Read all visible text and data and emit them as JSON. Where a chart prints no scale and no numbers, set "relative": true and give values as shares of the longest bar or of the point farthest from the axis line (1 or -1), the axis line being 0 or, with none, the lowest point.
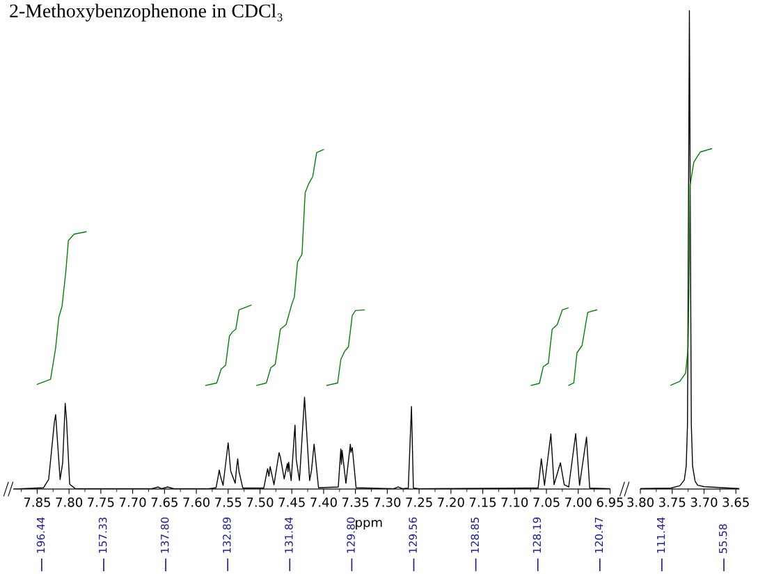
{
  "chart_data": [
    {
      "type": "line",
      "title": "2-Methoxybenzophenone in CDCl₃",
      "xlabel": "ppm",
      "relative": true,
      "grid": false,
      "tick_labels": "x",
      "xlim": [
        7.887,
        6.95
      ],
      "xticks": [
        {
          "value": 7.85,
          "label": "7.85"
        },
        {
          "value": 7.8,
          "label": "7.80"
        },
        {
          "value": 7.75,
          "label": "7.75"
        },
        {
          "value": 7.7,
          "label": "7.70"
        },
        {
          "value": 7.65,
          "label": "7.65"
        },
        {
          "value": 7.6,
          "label": "7.60"
        },
        {
          "value": 7.55,
          "label": "7.55"
        },
        {
          "value": 7.5,
          "label": "7.50"
        },
        {
          "value": 7.45,
          "label": "7.45"
        },
        {
          "value": 7.4,
          "label": "7.40"
        },
        {
          "value": 7.35,
          "label": "7.35"
        },
        {
          "value": 7.3,
          "label": "7.30"
        },
        {
          "value": 7.25,
          "label": "7.25"
        },
        {
          "value": 7.2,
          "label": "7.20"
        },
        {
          "value": 7.15,
          "label": "7.15"
        },
        {
          "value": 7.1,
          "label": "7.10"
        },
        {
          "value": 7.05,
          "label": "7.05"
        },
        {
          "value": 7.0,
          "label": "7.00"
        },
        {
          "value": 6.95,
          "label": "6.95"
        }
      ],
      "annotations": [
        "196.44",
        "157.33",
        "137.80",
        "132.89",
        "131.84",
        "129.80",
        "129.56",
        "128.85",
        "128.19",
        "120.47",
        "111.44",
        "55.58"
      ],
      "series": [
        {
          "color": "#000000",
          "x": [
            7.887,
            7.84,
            7.832,
            7.823,
            7.821,
            7.814,
            7.81,
            7.806,
            7.804,
            7.799,
            7.79,
            7.67,
            7.66,
            7.655,
            7.645,
            7.635,
            7.58,
            7.569,
            7.566,
            7.564,
            7.562,
            7.558,
            7.55,
            7.546,
            7.539,
            7.537,
            7.535,
            7.533,
            7.527,
            7.494,
            7.488,
            7.486,
            7.484,
            7.478,
            7.47,
            7.468,
            7.462,
            7.457,
            7.456,
            7.455,
            7.451,
            7.445,
            7.443,
            7.438,
            7.43,
            7.422,
            7.419,
            7.415,
            7.408,
            7.377,
            7.373,
            7.372,
            7.371,
            7.365,
            7.358,
            7.357,
            7.355,
            7.349,
            7.29,
            7.283,
            7.276,
            7.267,
            7.262,
            7.259,
            7.25,
            7.063,
            7.058,
            7.053,
            7.043,
            7.038,
            7.028,
            7.022,
            7.015,
            7.004,
            6.998,
            6.987,
            6.982,
            6.95
          ],
          "values": [
            0,
            0.004,
            0.028,
            0.197,
            0.219,
            0.028,
            0.077,
            0.252,
            0.207,
            0.014,
            0.001,
            0.001,
            0.006,
            0.001,
            0.006,
            0.001,
            0.001,
            0.004,
            0.034,
            0.056,
            0.037,
            0.011,
            0.136,
            0.053,
            0.017,
            0.058,
            0.089,
            0.052,
            0.003,
            0.003,
            0.06,
            0.038,
            0.066,
            0.013,
            0.107,
            0.094,
            0.03,
            0.075,
            0.051,
            0.079,
            0.025,
            0.188,
            0.087,
            0.025,
            0.27,
            0.025,
            0.056,
            0.132,
            0.004,
            0.006,
            0.118,
            0.073,
            0.114,
            0.017,
            0.132,
            0.108,
            0.122,
            0.004,
            0.001,
            0.006,
            0.001,
            0.003,
            0.243,
            0.003,
            0.001,
            0.003,
            0.089,
            0.011,
            0.162,
            0.013,
            0.077,
            0.013,
            0.006,
            0.163,
            0.011,
            0.153,
            0.003,
            0.001
          ]
        },
        {
          "color": "#008000",
          "x": [
            7.85,
            7.829,
            7.821,
            7.816,
            7.811,
            7.805,
            7.801,
            7.792,
            7.773
          ],
          "values": [
            0.308,
            0.323,
            0.415,
            0.506,
            0.537,
            0.64,
            0.731,
            0.75,
            0.757
          ]
        },
        {
          "color": "#008000",
          "x": [
            7.585,
            7.568,
            7.561,
            7.554,
            7.548,
            7.543,
            7.538,
            7.533,
            7.514
          ],
          "values": [
            0.305,
            0.312,
            0.353,
            0.364,
            0.45,
            0.463,
            0.47,
            0.527,
            0.541
          ]
        },
        {
          "color": "#008000",
          "x": [
            7.505,
            7.49,
            7.483,
            7.476,
            7.468,
            7.459,
            7.45,
            7.446,
            7.441,
            7.434,
            7.429,
            7.424,
            7.417,
            7.411,
            7.399
          ],
          "values": [
            0.305,
            0.312,
            0.357,
            0.367,
            0.47,
            0.484,
            0.544,
            0.565,
            0.668,
            0.691,
            0.872,
            0.896,
            0.92,
            0.99,
            1.0
          ]
        },
        {
          "color": "#008000",
          "x": [
            7.395,
            7.378,
            7.373,
            7.367,
            7.361,
            7.355,
            7.35,
            7.336
          ],
          "values": [
            0.305,
            0.312,
            0.381,
            0.405,
            0.419,
            0.511,
            0.525,
            0.527
          ]
        },
        {
          "color": "#008000",
          "x": [
            7.074,
            7.061,
            7.055,
            7.047,
            7.041,
            7.033,
            7.025,
            7.016
          ],
          "values": [
            0.305,
            0.311,
            0.36,
            0.37,
            0.47,
            0.484,
            0.527,
            0.533
          ]
        },
        {
          "color": "#008000",
          "x": [
            7.015,
            7.007,
            7.002,
            6.994,
            6.988,
            6.985,
            6.971
          ],
          "values": [
            0.305,
            0.312,
            0.401,
            0.422,
            0.489,
            0.52,
            0.527
          ]
        }
      ]
    },
    {
      "type": "line",
      "relative": true,
      "grid": false,
      "tick_labels": "x",
      "xlim": [
        3.8,
        3.645
      ],
      "xticks": [
        {
          "value": 3.8,
          "label": "3.80"
        },
        {
          "value": 3.75,
          "label": "3.75"
        },
        {
          "value": 3.7,
          "label": "3.70"
        },
        {
          "value": 3.65,
          "label": "3.65"
        }
      ],
      "series": [
        {
          "color": "#000000",
          "x": [
            3.8,
            3.752,
            3.738,
            3.731,
            3.728,
            3.726,
            3.723,
            3.72,
            3.718,
            3.714,
            3.71,
            3.7,
            3.645
          ],
          "values": [
            0.001,
            0.002,
            0.007,
            0.019,
            0.048,
            0.135,
            1.0,
            0.135,
            0.048,
            0.016,
            0.008,
            0.005,
            0.001
          ]
        },
        {
          "color": "#008000",
          "x": [
            3.752,
            3.738,
            3.729,
            3.725,
            3.723,
            3.722,
            3.716,
            3.706,
            3.688
          ],
          "values": [
            0.217,
            0.225,
            0.242,
            0.295,
            0.489,
            0.634,
            0.683,
            0.704,
            0.711
          ]
        }
      ]
    }
  ]
}
